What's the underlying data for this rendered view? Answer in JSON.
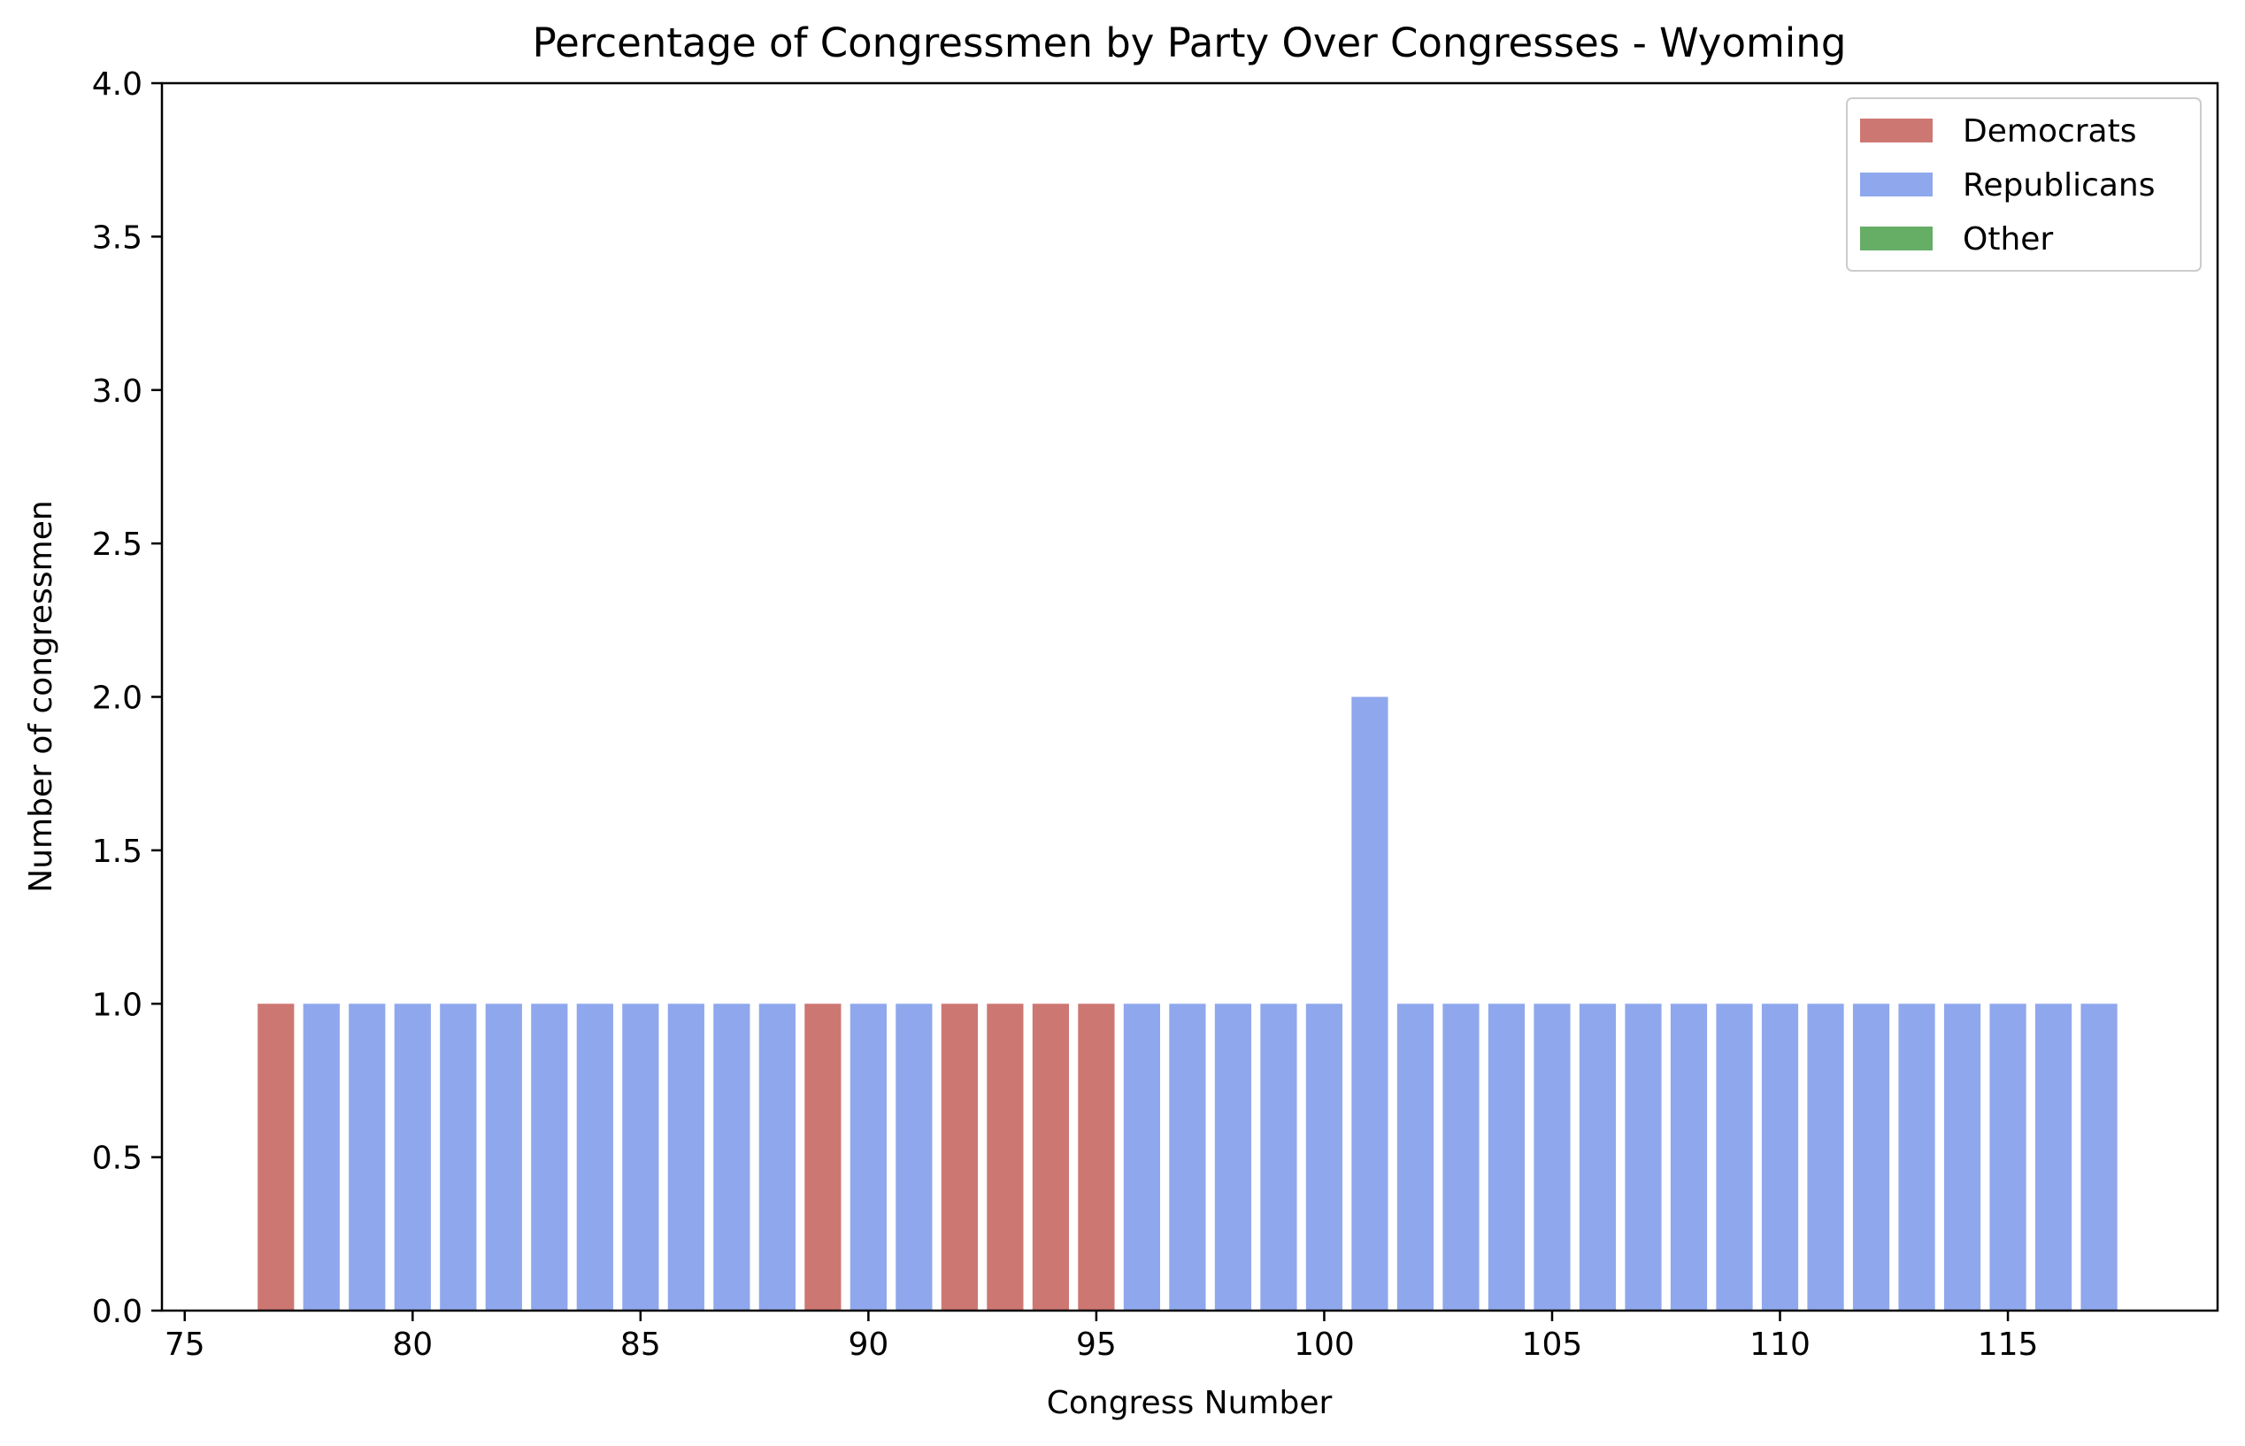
{
  "chart_data": {
    "type": "bar",
    "title": "Percentage of Congressmen by Party Over Congresses - Wyoming",
    "xlabel": "Congress Number",
    "ylabel": "Number of congressmen",
    "xlim": [
      74.5,
      119.6
    ],
    "ylim": [
      0,
      4.0
    ],
    "x_ticks": [
      "75",
      "80",
      "85",
      "90",
      "95",
      "100",
      "105",
      "110",
      "115"
    ],
    "y_ticks": [
      "0.0",
      "0.5",
      "1.0",
      "1.5",
      "2.0",
      "2.5",
      "3.0",
      "3.5",
      "4.0"
    ],
    "grid": false,
    "stacked": true,
    "legend_position": "top-right",
    "categories": [
      77,
      78,
      79,
      80,
      81,
      82,
      83,
      84,
      85,
      86,
      87,
      88,
      89,
      90,
      91,
      92,
      93,
      94,
      95,
      96,
      97,
      98,
      99,
      100,
      101,
      102,
      103,
      104,
      105,
      106,
      107,
      108,
      109,
      110,
      111,
      112,
      113,
      114,
      115,
      116,
      117
    ],
    "series": [
      {
        "name": "Democrats",
        "color": "#cd7773",
        "values": [
          1,
          0,
          0,
          0,
          0,
          0,
          0,
          0,
          0,
          0,
          0,
          0,
          1,
          0,
          0,
          1,
          1,
          1,
          1,
          0,
          0,
          0,
          0,
          0,
          0,
          0,
          0,
          0,
          0,
          0,
          0,
          0,
          0,
          0,
          0,
          0,
          0,
          0,
          0,
          0,
          0
        ]
      },
      {
        "name": "Republicans",
        "color": "#8fa7ec",
        "values": [
          0,
          1,
          1,
          1,
          1,
          1,
          1,
          1,
          1,
          1,
          1,
          1,
          0,
          1,
          1,
          0,
          0,
          0,
          0,
          1,
          1,
          1,
          1,
          1,
          2,
          1,
          1,
          1,
          1,
          1,
          1,
          1,
          1,
          1,
          1,
          1,
          1,
          1,
          1,
          1,
          1
        ]
      },
      {
        "name": "Other",
        "color": "#66ad66",
        "values": [
          0,
          0,
          0,
          0,
          0,
          0,
          0,
          0,
          0,
          0,
          0,
          0,
          0,
          0,
          0,
          0,
          0,
          0,
          0,
          0,
          0,
          0,
          0,
          0,
          0,
          0,
          0,
          0,
          0,
          0,
          0,
          0,
          0,
          0,
          0,
          0,
          0,
          0,
          0,
          0,
          0
        ]
      }
    ]
  }
}
